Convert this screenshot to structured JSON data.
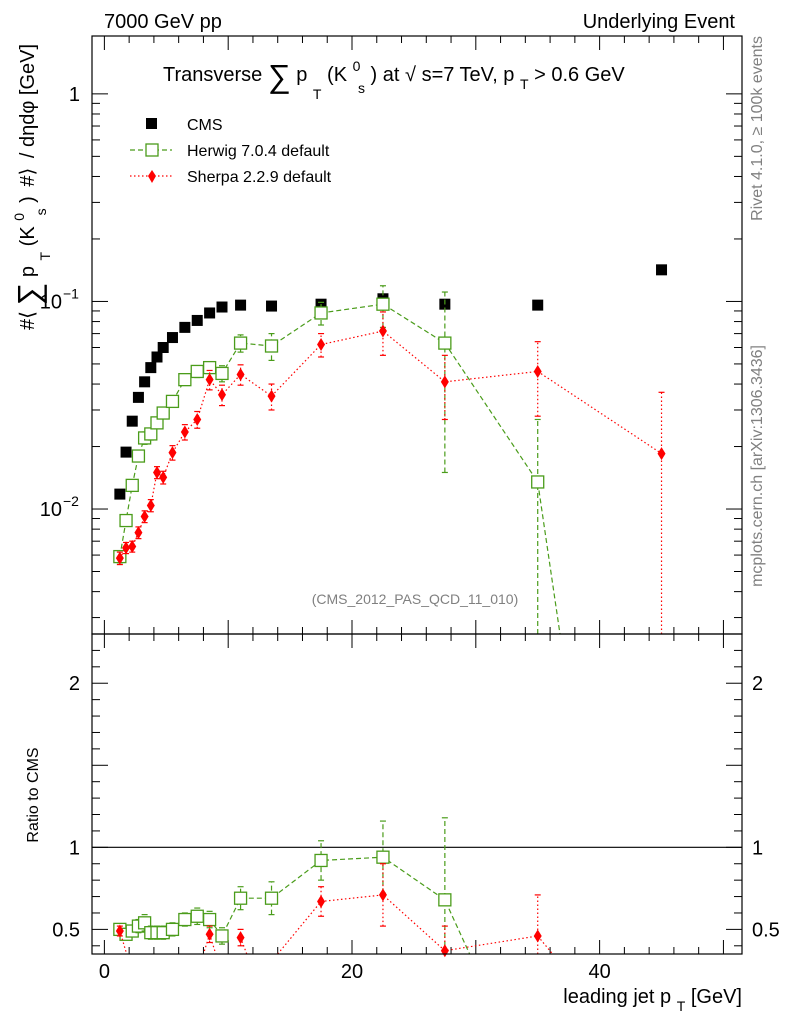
{
  "header": {
    "left": "7000 GeV pp",
    "right": "Underlying Event"
  },
  "side_labels": {
    "rivet": "Rivet 4.1.0, ≥ 100k events",
    "mcplots": "mcplots.cern.ch [arXiv:1306.3436]"
  },
  "chart_data": [
    {
      "panel": "main",
      "type": "scatter",
      "title": "Transverse ∑ p_T(K0_s) at √s=7 TeV, p_T > 0.6 GeV",
      "title_parts": {
        "lead": "Transverse",
        "sum": "∑",
        "p": "p",
        "sub_t": "T",
        "paren_open": "(K",
        "sup_0": "0",
        "sub_s": "s",
        "paren_close": ")",
        "rest1": " at ",
        "sqrt": "√",
        "rest2": "s=7 TeV, p",
        "rest3": " > 0.6 GeV"
      },
      "ylabel": "#⟨ ∑ p_T (K0_s) #⟩ / dηdφ [GeV]",
      "ylabel_parts": {
        "hash1": "#⟨",
        "sum": "∑",
        "p": "p",
        "sub_t": "T",
        "k": "(K",
        "sup_0": "0",
        "sub_s": "s",
        "close": ")",
        "hash2": "#⟩",
        "rest": "/ dηdφ [GeV]"
      },
      "yscale": "log",
      "ylim": [
        0.0025,
        1.9
      ],
      "xlim": [
        -1,
        51.5
      ],
      "y_tick_labels": [
        {
          "value": 1,
          "base": "1",
          "exp": ""
        },
        {
          "value": 0.1,
          "base": "10",
          "exp": "−1"
        },
        {
          "value": 0.01,
          "base": "10",
          "exp": "−2"
        }
      ],
      "annotation": "(CMS_2012_PAS_QCD_11_010)",
      "legend_position": "top-left",
      "series": [
        {
          "name": "CMS",
          "style": "data-square",
          "color": "#000000",
          "x": [
            1.25,
            1.75,
            2.25,
            2.75,
            3.25,
            3.75,
            4.25,
            4.75,
            5.5,
            6.5,
            7.5,
            8.5,
            9.5,
            11.0,
            13.5,
            17.5,
            22.5,
            27.5,
            35.0,
            45.0
          ],
          "y": [
            0.0118,
            0.0188,
            0.0265,
            0.0345,
            0.041,
            0.048,
            0.054,
            0.06,
            0.067,
            0.075,
            0.081,
            0.088,
            0.094,
            0.096,
            0.095,
            0.097,
            0.103,
            0.097,
            0.096,
            0.142
          ],
          "err": [
            0.0005,
            0.0007,
            0.0008,
            0.001,
            0.001,
            0.001,
            0.001,
            0.001,
            0.001,
            0.0015,
            0.0015,
            0.0015,
            0.0015,
            0.0015,
            0.0015,
            0.002,
            0.003,
            0.003,
            0.003,
            0.005
          ]
        },
        {
          "name": "Herwig 7.0.4 default",
          "style": "open-square-dashed",
          "color": "#4a9c1a",
          "x": [
            1.25,
            1.75,
            2.25,
            2.75,
            3.25,
            3.75,
            4.25,
            4.75,
            5.5,
            6.5,
            7.5,
            8.5,
            9.5,
            11.0,
            13.5,
            17.5,
            22.5,
            27.5,
            35.0,
            36.8
          ],
          "y": [
            0.0059,
            0.0088,
            0.013,
            0.018,
            0.022,
            0.023,
            0.026,
            0.029,
            0.033,
            0.042,
            0.046,
            0.048,
            0.045,
            0.063,
            0.061,
            0.088,
            0.097,
            0.063,
            0.0135,
            0.0024
          ],
          "err": [
            0.0004,
            0.0005,
            0.0008,
            0.001,
            0.0015,
            0.0015,
            0.0015,
            0.0015,
            0.0015,
            0.002,
            0.003,
            0.003,
            0.004,
            0.006,
            0.009,
            0.011,
            0.022,
            0.048,
            0.0135,
            0.0
          ],
          "markers": 19
        },
        {
          "name": "Sherpa 2.2.9 default",
          "style": "diamond-dotted",
          "color": "#ff0000",
          "x": [
            1.25,
            1.75,
            2.25,
            2.75,
            3.25,
            3.75,
            4.25,
            4.75,
            5.5,
            6.5,
            7.5,
            8.5,
            9.5,
            11.0,
            13.5,
            17.5,
            22.5,
            27.5,
            35.0,
            45.0
          ],
          "y": [
            0.0058,
            0.0065,
            0.0066,
            0.0077,
            0.0092,
            0.0104,
            0.015,
            0.0142,
            0.0187,
            0.0235,
            0.027,
            0.042,
            0.0355,
            0.0445,
            0.035,
            0.062,
            0.072,
            0.041,
            0.046,
            0.0185
          ],
          "err": [
            0.0004,
            0.0004,
            0.0004,
            0.0005,
            0.0006,
            0.0007,
            0.001,
            0.001,
            0.0015,
            0.002,
            0.0025,
            0.0045,
            0.004,
            0.005,
            0.005,
            0.008,
            0.017,
            0.014,
            0.018,
            0.018
          ]
        }
      ]
    },
    {
      "panel": "ratio",
      "type": "scatter",
      "ylabel": "Ratio to CMS",
      "xlabel": "leading jet p_T [GeV]",
      "xlabel_parts": {
        "main": "leading jet p",
        "sub_t": "T",
        "unit": " [GeV]"
      },
      "ylim": [
        0.35,
        2.3
      ],
      "xlim": [
        -1,
        51.5
      ],
      "x_ticks": [
        {
          "value": 0,
          "label": "0"
        },
        {
          "value": 20,
          "label": "20"
        },
        {
          "value": 40,
          "label": "40"
        }
      ],
      "y_ticks": [
        {
          "value": 0.5,
          "label": "0.5"
        },
        {
          "value": 1,
          "label": "1"
        },
        {
          "value": 2,
          "label": "2"
        }
      ],
      "reference_line": 1,
      "series": [
        {
          "name": "Herwig 7.0.4 default",
          "color": "#4a9c1a",
          "x": [
            1.25,
            1.75,
            2.25,
            2.75,
            3.25,
            3.75,
            4.25,
            4.75,
            5.5,
            6.5,
            7.5,
            8.5,
            9.5,
            11.0,
            13.5,
            17.5,
            22.5,
            27.5,
            29.5
          ],
          "y": [
            0.5,
            0.47,
            0.49,
            0.52,
            0.54,
            0.48,
            0.48,
            0.48,
            0.5,
            0.56,
            0.58,
            0.56,
            0.46,
            0.69,
            0.69,
            0.92,
            0.94,
            0.68,
            0.35
          ],
          "err": [
            0.03,
            0.03,
            0.03,
            0.04,
            0.05,
            0.04,
            0.04,
            0.04,
            0.04,
            0.04,
            0.05,
            0.05,
            0.05,
            0.07,
            0.1,
            0.12,
            0.22,
            0.5,
            0.0
          ],
          "markers": 18
        },
        {
          "name": "Sherpa 2.2.9 default",
          "color": "#ff0000",
          "x": [
            1.25,
            8.5,
            11.0,
            17.5,
            22.5,
            27.5,
            35.0,
            36.2
          ],
          "y": [
            0.49,
            0.47,
            0.45,
            0.67,
            0.71,
            0.37,
            0.46,
            0.35
          ],
          "err": [
            0.03,
            0.05,
            0.05,
            0.09,
            0.19,
            0.15,
            0.25,
            0.0
          ],
          "markers": 7,
          "partial_lines": [
            [
              1.25,
              0.49,
              1.8,
              0.35
            ],
            [
              8.5,
              0.47,
              8.0,
              0.35
            ],
            [
              8.5,
              0.47,
              9.0,
              0.35
            ],
            [
              11.0,
              0.45,
              11.5,
              0.35
            ],
            [
              14.0,
              0.35,
              17.5,
              0.67
            ]
          ]
        }
      ]
    }
  ]
}
